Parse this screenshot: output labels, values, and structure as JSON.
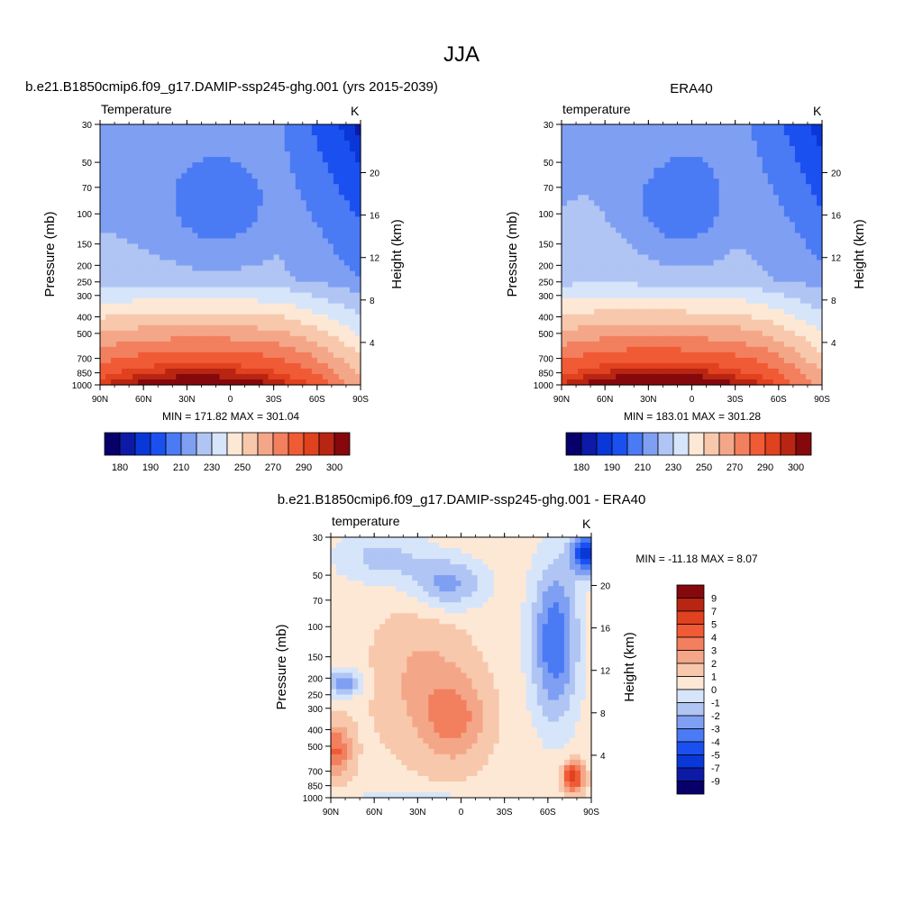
{
  "figure_title": "JJA",
  "panels": [
    {
      "title": "b.e21.B1850cmip6.f09_g17.DAMIP-ssp245-ghg.001 (yrs 2015-2039)",
      "left_label": "Temperature",
      "units": "K",
      "stats": "MIN = 171.82  MAX = 301.04",
      "ylabel": "Pressure (mb)",
      "ylabel_right": "Height (km)"
    },
    {
      "title": "ERA40",
      "left_label": "temperature",
      "units": "K",
      "stats": "MIN = 183.01  MAX = 301.28",
      "ylabel": "Pressure (mb)",
      "ylabel_right": "Height (km)"
    },
    {
      "title": "b.e21.B1850cmip6.f09_g17.DAMIP-ssp245-ghg.001 - ERA40",
      "left_label": "temperature",
      "units": "K",
      "stats": "MIN = -11.18  MAX =   8.07",
      "ylabel": "Pressure (mb)",
      "ylabel_right": "Height (km)"
    }
  ],
  "colorbars": {
    "abs_colors": [
      "#08006a",
      "#0c1aa6",
      "#0a37d8",
      "#1b50f0",
      "#4a7af4",
      "#7f9ff3",
      "#b0c5f3",
      "#d6e5fa",
      "#fde8d6",
      "#f8c8ac",
      "#f4a788",
      "#f27f5e",
      "#f05a35",
      "#e0411e",
      "#b82512",
      "#85080c"
    ],
    "abs_labels": [
      "180",
      "190",
      "210",
      "230",
      "250",
      "270",
      "290",
      "300"
    ],
    "diff_colors": [
      "#85080c",
      "#b82512",
      "#e0411e",
      "#f05a35",
      "#f27f5e",
      "#f4a788",
      "#f8c8ac",
      "#fde8d6",
      "#d6e5fa",
      "#b0c5f3",
      "#7f9ff3",
      "#4a7af4",
      "#1b50f0",
      "#0a37d8",
      "#0c1aa6",
      "#08006a"
    ],
    "diff_labels": [
      "9",
      "7",
      "5",
      "4",
      "3",
      "2",
      "1",
      "0",
      "-1",
      "-2",
      "-3",
      "-4",
      "-5",
      "-7",
      "-9"
    ]
  },
  "chart_data": [
    {
      "type": "heatmap",
      "title": "b.e21.B1850cmip6.f09_g17.DAMIP-ssp245-ghg.001 (yrs 2015-2039)",
      "variable": "Temperature",
      "units": "K",
      "x_ticks": [
        "90N",
        "60N",
        "30N",
        "0",
        "30S",
        "60S",
        "90S"
      ],
      "xlim": [
        90,
        -90
      ],
      "y_ticks": [
        30,
        50,
        70,
        100,
        150,
        200,
        250,
        300,
        400,
        500,
        700,
        850,
        1000
      ],
      "ylim": [
        30,
        1000
      ],
      "y_scale": "log",
      "ylabel": "Pressure (mb)",
      "y2_ticks": [
        4,
        8,
        12,
        16,
        20
      ],
      "y2label": "Height (km)",
      "min": 171.82,
      "max": 301.04,
      "levels": [
        180,
        190,
        210,
        230,
        250,
        270,
        290,
        300
      ]
    },
    {
      "type": "heatmap",
      "title": "ERA40",
      "variable": "temperature",
      "units": "K",
      "x_ticks": [
        "90N",
        "60N",
        "30N",
        "0",
        "30S",
        "60S",
        "90S"
      ],
      "xlim": [
        90,
        -90
      ],
      "y_ticks": [
        30,
        50,
        70,
        100,
        150,
        200,
        250,
        300,
        400,
        500,
        700,
        850,
        1000
      ],
      "ylim": [
        30,
        1000
      ],
      "y_scale": "log",
      "ylabel": "Pressure (mb)",
      "y2_ticks": [
        4,
        8,
        12,
        16,
        20
      ],
      "y2label": "Height (km)",
      "min": 183.01,
      "max": 301.28,
      "levels": [
        180,
        190,
        210,
        230,
        250,
        270,
        290,
        300
      ]
    },
    {
      "type": "heatmap",
      "title": "b.e21.B1850cmip6.f09_g17.DAMIP-ssp245-ghg.001 - ERA40",
      "variable": "temperature",
      "units": "K",
      "x_ticks": [
        "90N",
        "60N",
        "30N",
        "0",
        "30S",
        "60S",
        "90S"
      ],
      "xlim": [
        90,
        -90
      ],
      "y_ticks": [
        30,
        50,
        70,
        100,
        150,
        200,
        250,
        300,
        400,
        500,
        700,
        850,
        1000
      ],
      "ylim": [
        30,
        1000
      ],
      "y_scale": "log",
      "ylabel": "Pressure (mb)",
      "y2_ticks": [
        4,
        8,
        12,
        16,
        20
      ],
      "y2label": "Height (km)",
      "min": -11.18,
      "max": 8.07,
      "levels": [
        -9,
        -7,
        -5,
        -4,
        -3,
        -2,
        -1,
        0,
        1,
        2,
        3,
        4,
        5,
        7,
        9
      ]
    }
  ]
}
